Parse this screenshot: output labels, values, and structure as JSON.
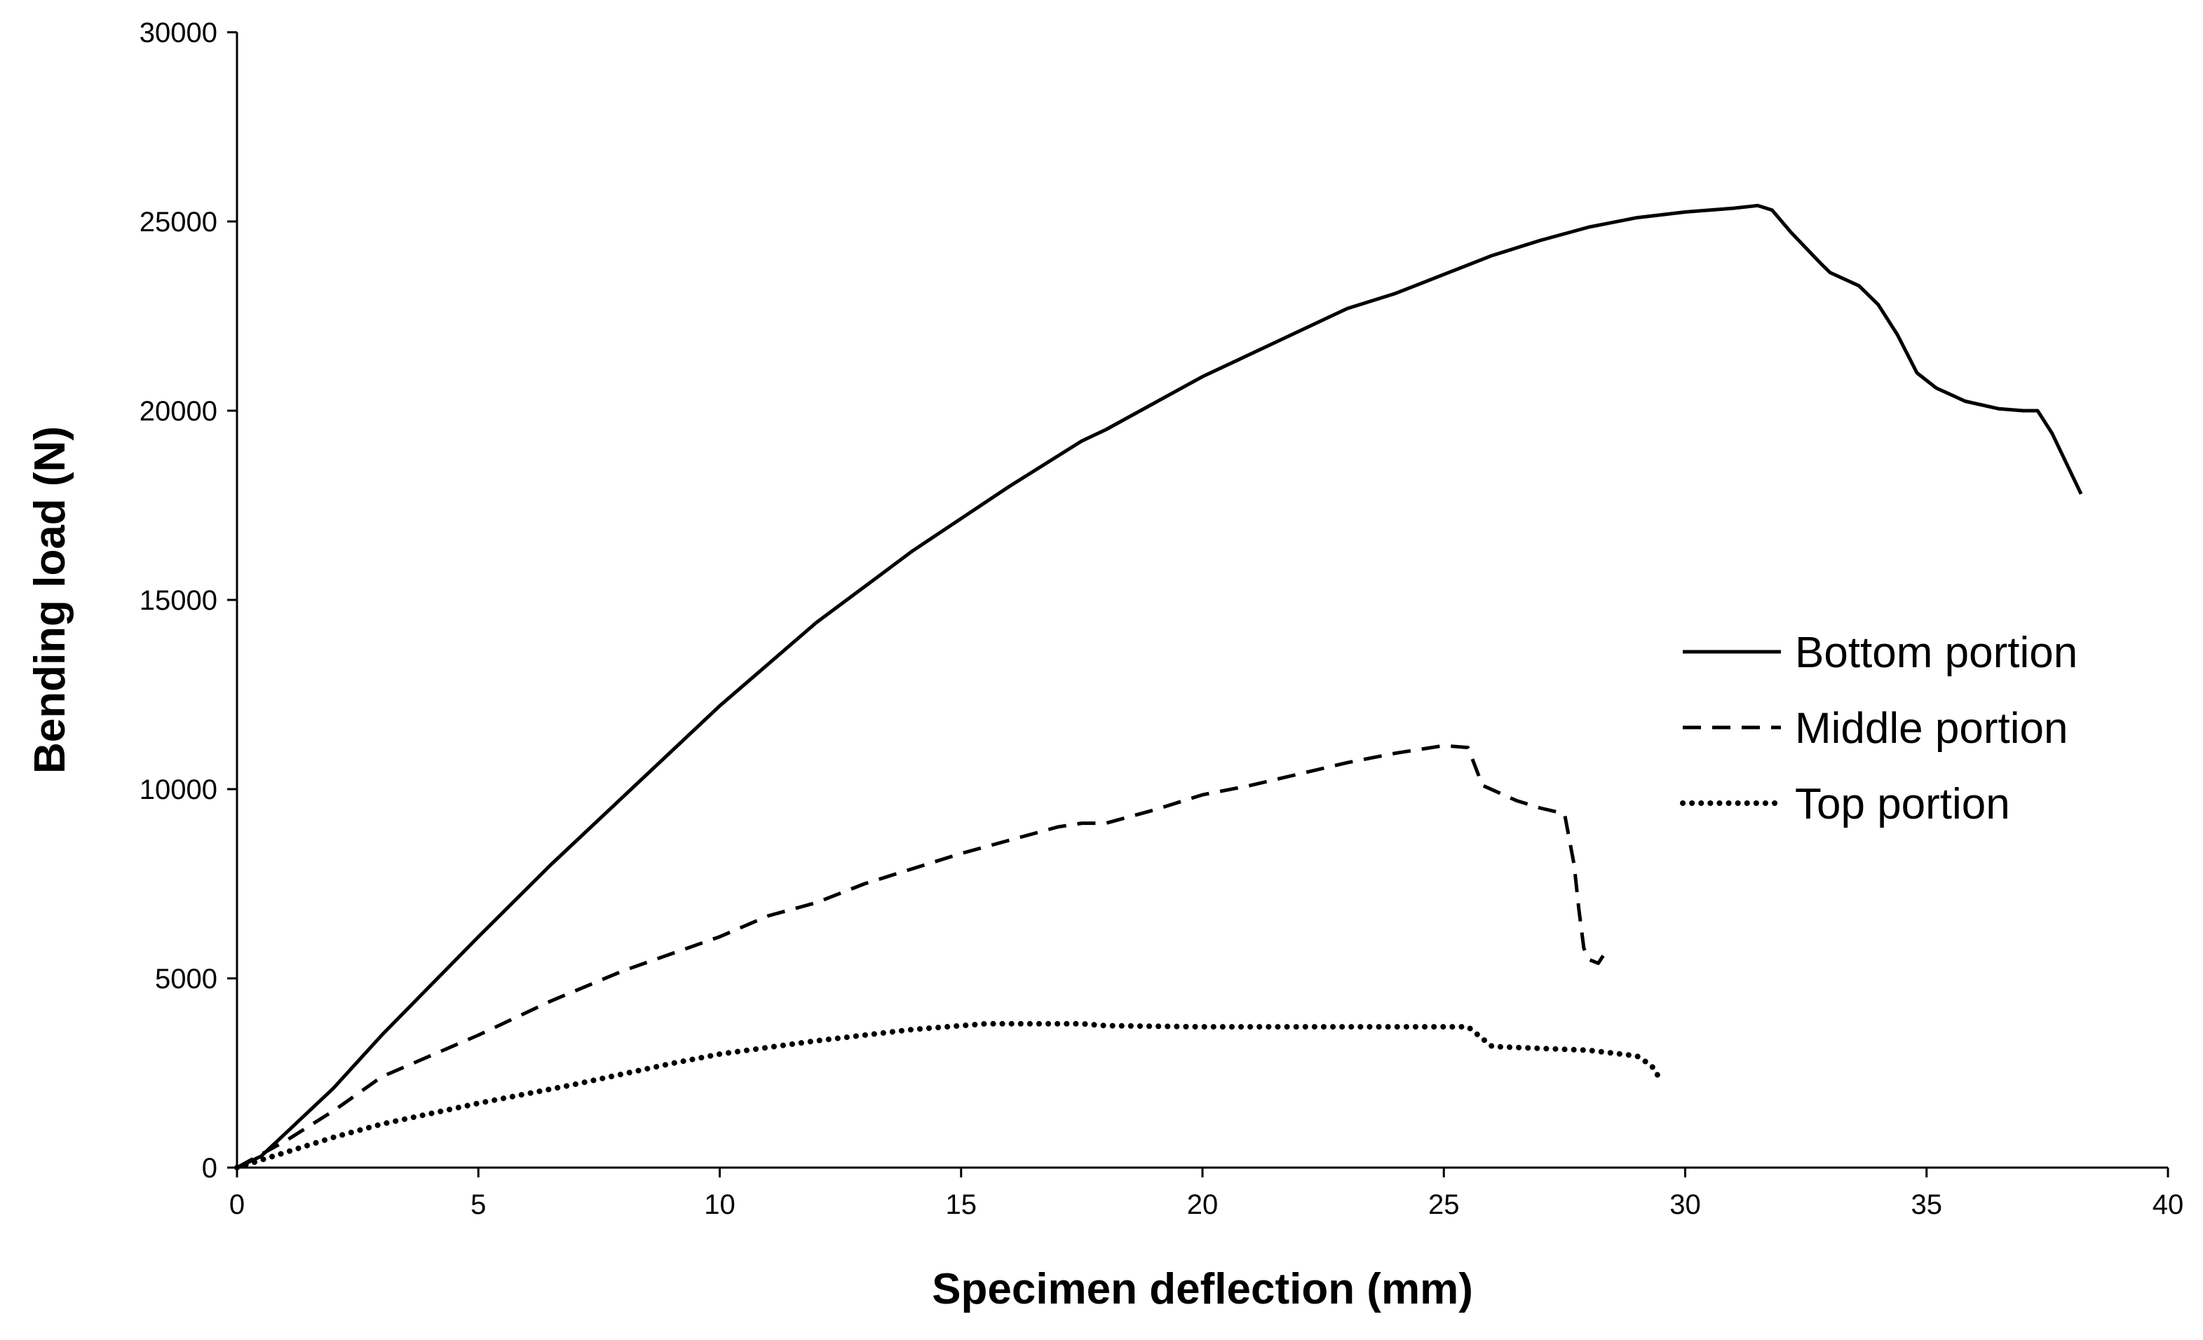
{
  "chart_data": {
    "type": "line",
    "title": "",
    "xlabel": "Specimen deflection (mm)",
    "ylabel": "Bending load (N)",
    "xlim": [
      0,
      40
    ],
    "ylim": [
      0,
      30000
    ],
    "xticks": [
      0,
      5,
      10,
      15,
      20,
      25,
      30,
      35,
      40
    ],
    "yticks": [
      0,
      5000,
      10000,
      15000,
      20000,
      25000,
      30000
    ],
    "grid": false,
    "legend_position": "right",
    "series": [
      {
        "name": "Bottom portion",
        "style": "solid",
        "color": "#000000",
        "points": [
          [
            0,
            0
          ],
          [
            0.5,
            300
          ],
          [
            1,
            900
          ],
          [
            2,
            2100
          ],
          [
            3,
            3500
          ],
          [
            4,
            4800
          ],
          [
            5,
            6100
          ],
          [
            6.5,
            8000
          ],
          [
            8,
            9800
          ],
          [
            10,
            12200
          ],
          [
            12,
            14400
          ],
          [
            14,
            16300
          ],
          [
            16,
            18000
          ],
          [
            17.5,
            19200
          ],
          [
            18,
            19500
          ],
          [
            20,
            20900
          ],
          [
            21,
            21500
          ],
          [
            22,
            22100
          ],
          [
            23,
            22700
          ],
          [
            24,
            23100
          ],
          [
            25,
            23600
          ],
          [
            26,
            24100
          ],
          [
            27,
            24500
          ],
          [
            28,
            24850
          ],
          [
            29,
            25100
          ],
          [
            30,
            25250
          ],
          [
            31,
            25350
          ],
          [
            31.5,
            25420
          ],
          [
            31.8,
            25300
          ],
          [
            32.2,
            24700
          ],
          [
            32.8,
            23900
          ],
          [
            33,
            23650
          ],
          [
            33.6,
            23300
          ],
          [
            34,
            22800
          ],
          [
            34.4,
            22000
          ],
          [
            34.8,
            21000
          ],
          [
            35.2,
            20600
          ],
          [
            35.8,
            20250
          ],
          [
            36.5,
            20050
          ],
          [
            37,
            20000
          ],
          [
            37.3,
            20000
          ],
          [
            37.6,
            19400
          ],
          [
            38.2,
            17800
          ]
        ]
      },
      {
        "name": "Middle portion",
        "style": "dashed",
        "color": "#000000",
        "points": [
          [
            0,
            0
          ],
          [
            1,
            700
          ],
          [
            2,
            1500
          ],
          [
            3,
            2400
          ],
          [
            5,
            3500
          ],
          [
            6.5,
            4400
          ],
          [
            8,
            5200
          ],
          [
            10,
            6100
          ],
          [
            11,
            6650
          ],
          [
            12,
            7000
          ],
          [
            13,
            7500
          ],
          [
            15,
            8300
          ],
          [
            17,
            9000
          ],
          [
            17.5,
            9100
          ],
          [
            18,
            9100
          ],
          [
            19,
            9450
          ],
          [
            20,
            9850
          ],
          [
            21,
            10100
          ],
          [
            22,
            10400
          ],
          [
            23,
            10700
          ],
          [
            24,
            10950
          ],
          [
            25,
            11150
          ],
          [
            25.5,
            11100
          ],
          [
            25.8,
            10100
          ],
          [
            26.5,
            9700
          ],
          [
            27,
            9500
          ],
          [
            27.5,
            9350
          ],
          [
            27.7,
            8000
          ],
          [
            27.8,
            6800
          ],
          [
            27.9,
            5800
          ],
          [
            28,
            5500
          ],
          [
            28.2,
            5400
          ],
          [
            28.3,
            5600
          ]
        ]
      },
      {
        "name": "Top portion",
        "style": "dotted",
        "color": "#000000",
        "points": [
          [
            0,
            0
          ],
          [
            1,
            400
          ],
          [
            2,
            800
          ],
          [
            3,
            1150
          ],
          [
            5,
            1700
          ],
          [
            7,
            2200
          ],
          [
            9,
            2750
          ],
          [
            10,
            3000
          ],
          [
            12,
            3350
          ],
          [
            14,
            3650
          ],
          [
            15.5,
            3800
          ],
          [
            17.5,
            3800
          ],
          [
            18,
            3750
          ],
          [
            20,
            3720
          ],
          [
            22,
            3720
          ],
          [
            24,
            3720
          ],
          [
            25.5,
            3720
          ],
          [
            26,
            3200
          ],
          [
            27,
            3150
          ],
          [
            28,
            3100
          ],
          [
            29,
            2950
          ],
          [
            29.3,
            2700
          ],
          [
            29.5,
            2300
          ]
        ]
      }
    ]
  }
}
